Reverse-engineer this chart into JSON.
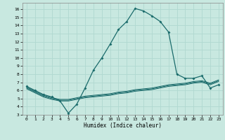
{
  "xlabel": "Humidex (Indice chaleur)",
  "background_color": "#c8e8e0",
  "grid_color": "#b0d8d0",
  "line_color": "#1a6b6b",
  "xlim": [
    -0.5,
    23.5
  ],
  "ylim": [
    3,
    16.8
  ],
  "xticks": [
    0,
    1,
    2,
    3,
    4,
    5,
    6,
    7,
    8,
    9,
    10,
    11,
    12,
    13,
    14,
    15,
    16,
    17,
    18,
    19,
    20,
    21,
    22,
    23
  ],
  "yticks": [
    3,
    4,
    5,
    6,
    7,
    8,
    9,
    10,
    11,
    12,
    13,
    14,
    15,
    16
  ],
  "main_x": [
    0,
    1,
    2,
    3,
    4,
    5,
    6,
    7,
    8,
    9,
    10,
    11,
    12,
    13,
    14,
    15,
    16,
    17,
    18,
    19,
    20,
    21,
    22,
    23
  ],
  "main_y": [
    6.5,
    6.0,
    5.5,
    5.2,
    4.7,
    3.2,
    4.3,
    6.3,
    8.5,
    10.0,
    11.7,
    13.5,
    14.5,
    16.1,
    15.8,
    15.2,
    14.5,
    13.2,
    8.0,
    7.5,
    7.5,
    7.8,
    6.3,
    6.7
  ],
  "line2_x": [
    0,
    1,
    2,
    3,
    4,
    5,
    6,
    7,
    8,
    9,
    10,
    11,
    12,
    13,
    14,
    15,
    16,
    17,
    18,
    19,
    20,
    21,
    22,
    23
  ],
  "line2_y": [
    6.4,
    5.9,
    5.4,
    5.1,
    4.9,
    4.9,
    5.1,
    5.3,
    5.4,
    5.5,
    5.6,
    5.8,
    5.9,
    6.1,
    6.2,
    6.3,
    6.5,
    6.7,
    6.8,
    6.9,
    7.1,
    7.2,
    6.9,
    7.3
  ],
  "line3_x": [
    0,
    1,
    2,
    3,
    4,
    5,
    6,
    7,
    8,
    9,
    10,
    11,
    12,
    13,
    14,
    15,
    16,
    17,
    18,
    19,
    20,
    21,
    22,
    23
  ],
  "line3_y": [
    6.3,
    5.8,
    5.3,
    5.0,
    4.8,
    4.8,
    5.0,
    5.2,
    5.3,
    5.4,
    5.5,
    5.7,
    5.8,
    6.0,
    6.1,
    6.2,
    6.4,
    6.6,
    6.7,
    6.8,
    7.0,
    7.1,
    6.8,
    7.2
  ],
  "line4_x": [
    0,
    1,
    2,
    3,
    4,
    5,
    6,
    7,
    8,
    9,
    10,
    11,
    12,
    13,
    14,
    15,
    16,
    17,
    18,
    19,
    20,
    21,
    22,
    23
  ],
  "line4_y": [
    6.2,
    5.7,
    5.2,
    4.9,
    4.7,
    4.7,
    4.9,
    5.1,
    5.2,
    5.3,
    5.4,
    5.6,
    5.7,
    5.9,
    6.0,
    6.1,
    6.3,
    6.5,
    6.6,
    6.7,
    6.9,
    7.0,
    6.7,
    7.1
  ]
}
